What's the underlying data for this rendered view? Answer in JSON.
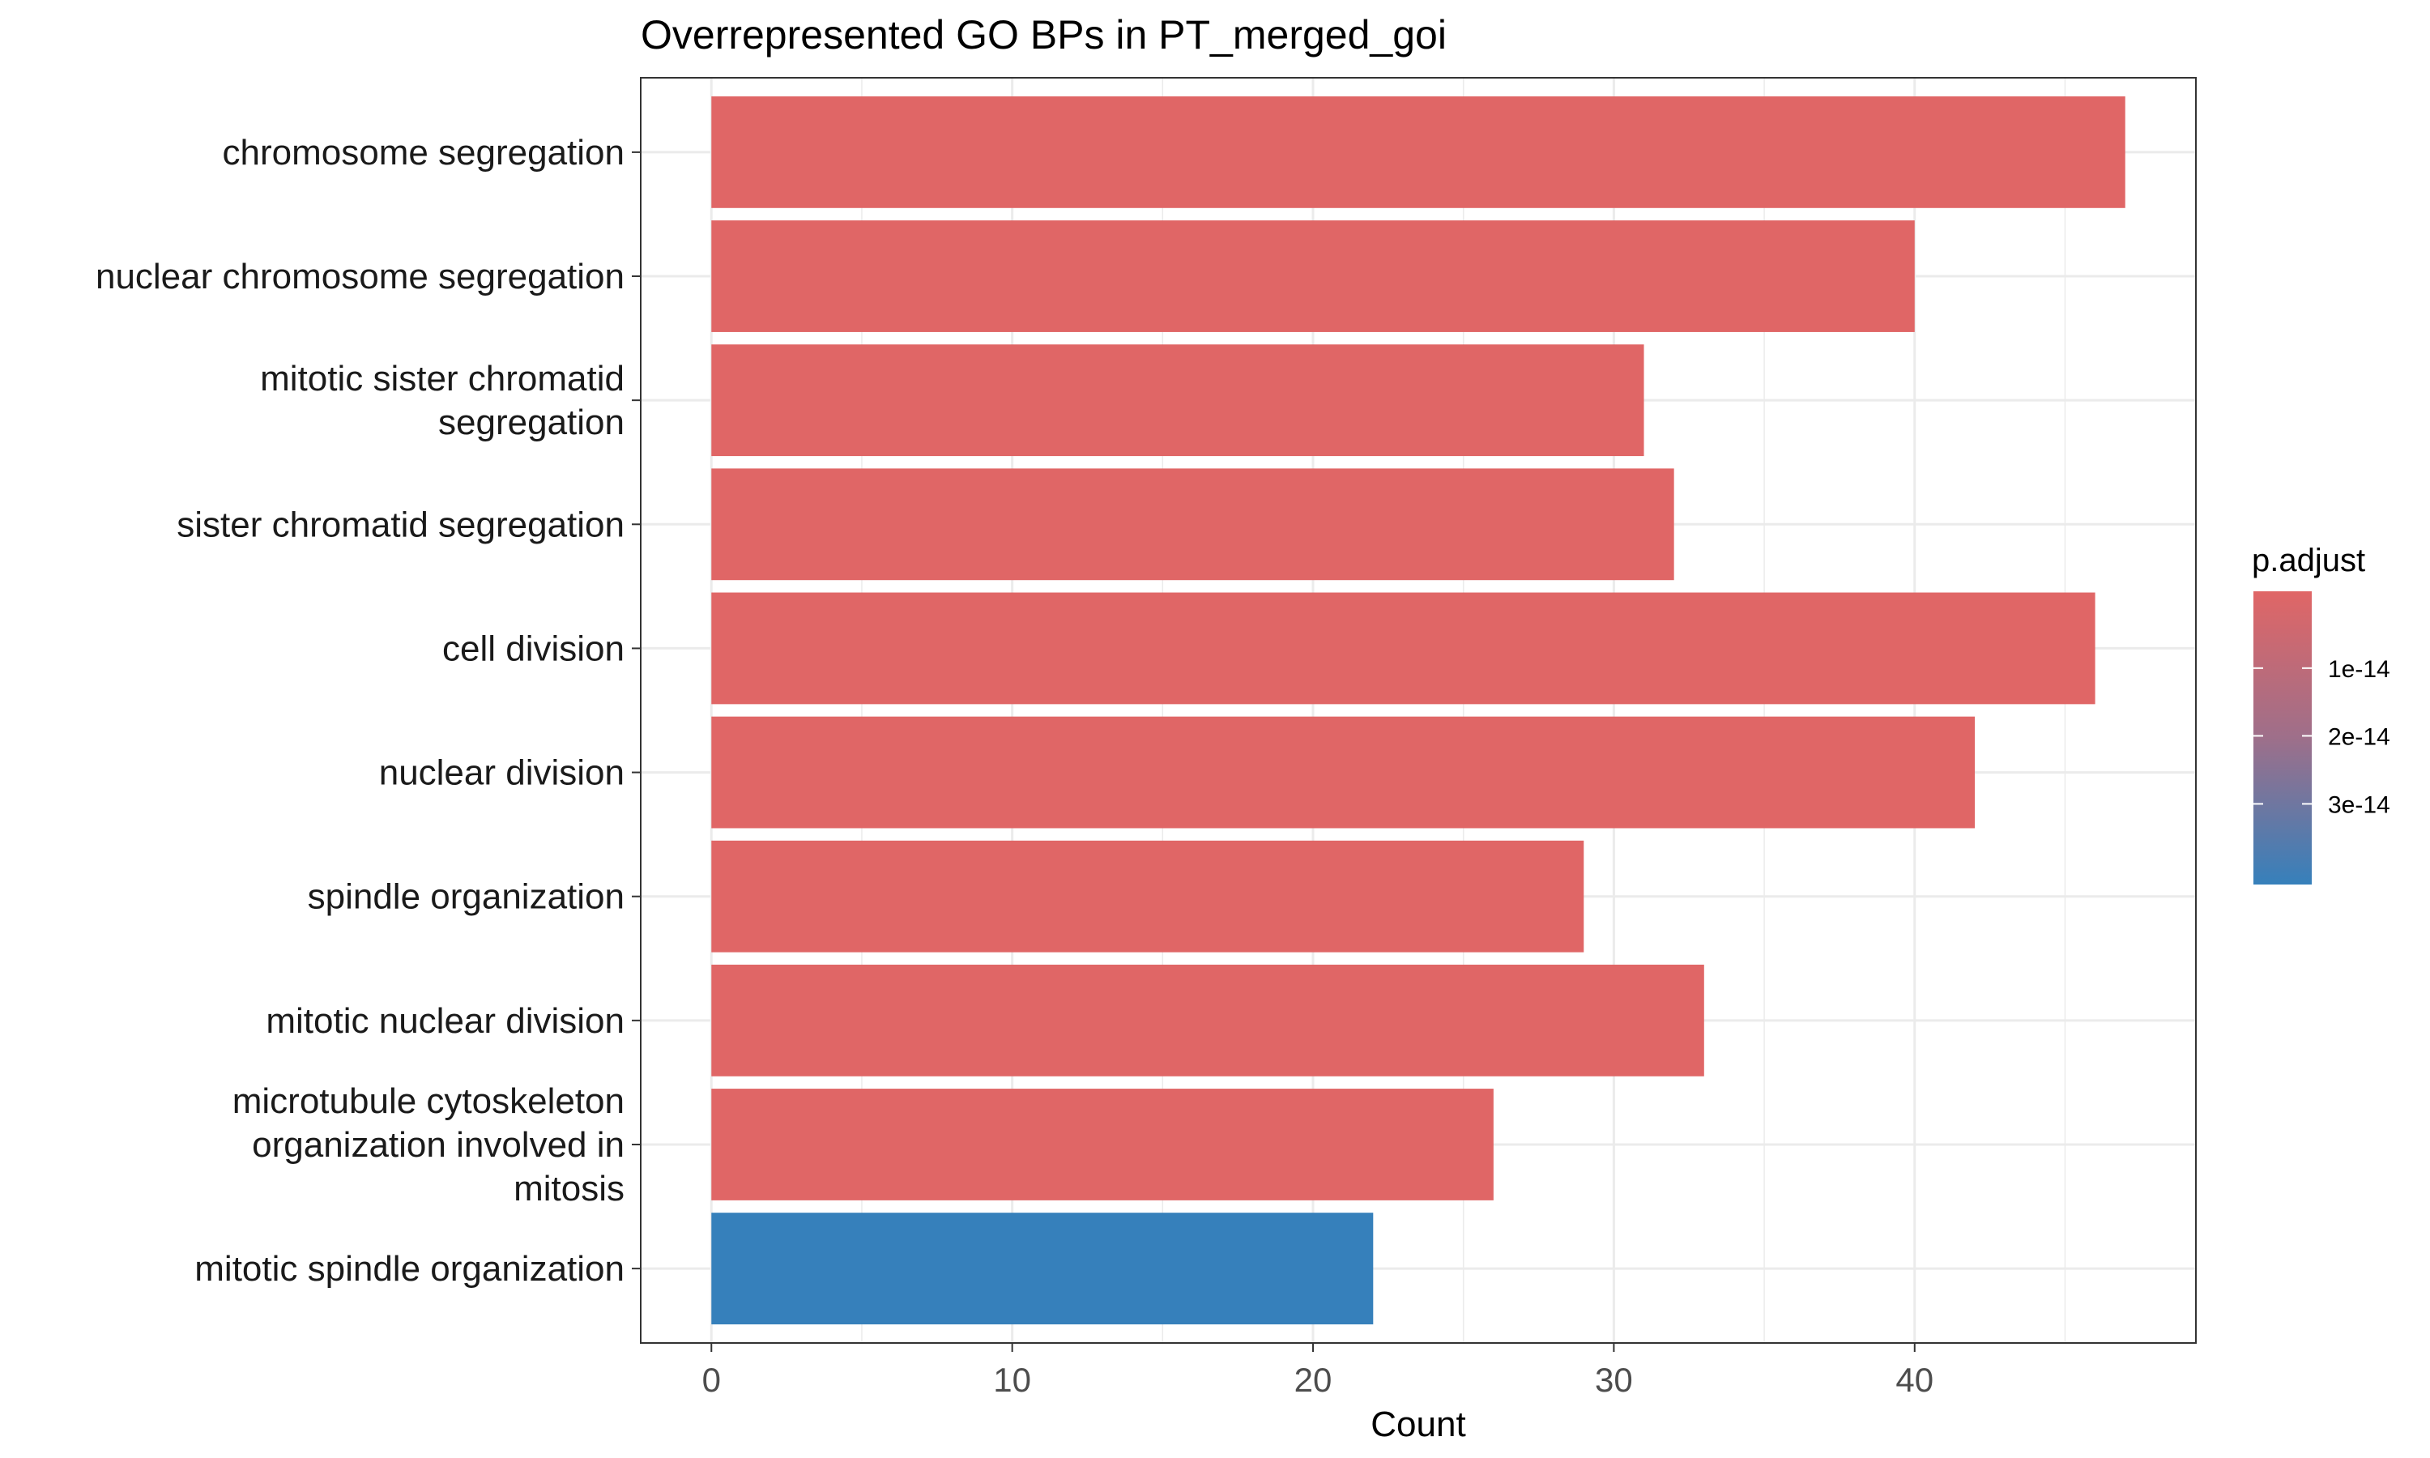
{
  "chart_data": {
    "type": "bar",
    "orientation": "horizontal",
    "title": "Overrepresented GO BPs in PT_merged_goi",
    "xlabel": "Count",
    "ylabel": "",
    "xlim": [
      -2.35,
      49.35
    ],
    "x_ticks": [
      0,
      10,
      20,
      30,
      40
    ],
    "x_tick_labels": [
      "0",
      "10",
      "20",
      "30",
      "40"
    ],
    "grid": true,
    "categories": [
      [
        "chromosome segregation"
      ],
      [
        "nuclear chromosome segregation"
      ],
      [
        "mitotic sister chromatid",
        "segregation"
      ],
      [
        "sister chromatid segregation"
      ],
      [
        "cell division"
      ],
      [
        "nuclear division"
      ],
      [
        "spindle organization"
      ],
      [
        "mitotic nuclear division"
      ],
      [
        "microtubule cytoskeleton",
        "organization involved in",
        "mitosis"
      ],
      [
        "mitotic spindle organization"
      ]
    ],
    "values": [
      47,
      40,
      31,
      32,
      46,
      42,
      29,
      33,
      26,
      22
    ],
    "colors": [
      "#e06666",
      "#e06666",
      "#e06666",
      "#e06666",
      "#e06666",
      "#e06666",
      "#e06666",
      "#e06666",
      "#e06666",
      "#3680bb"
    ],
    "legend": {
      "title": "p.adjust",
      "placement": "right",
      "labels": [
        "1e-14",
        "2e-14",
        "3e-14"
      ],
      "color_high": "#e06666",
      "color_mid": "#9e6f8a",
      "color_low": "#3680bb"
    },
    "panel_background": "#ffffff",
    "grid_color": "#ebebeb"
  }
}
